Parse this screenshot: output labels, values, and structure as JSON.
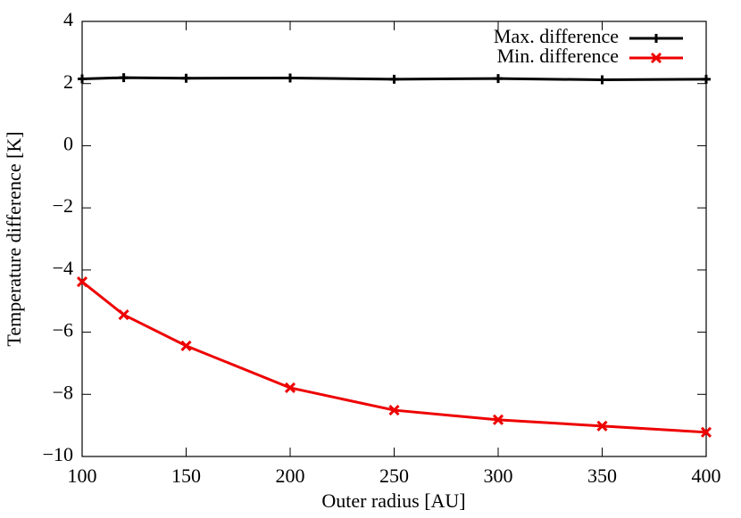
{
  "chart_data": {
    "type": "line",
    "x_label": "Outer radius [AU]",
    "y_label": "Temperature difference [K]",
    "x": [
      100,
      120,
      150,
      200,
      250,
      300,
      350,
      400
    ],
    "series": [
      {
        "name": "Max. difference",
        "color": "#000000",
        "marker": "plus",
        "values": [
          2.15,
          2.19,
          2.17,
          2.18,
          2.14,
          2.16,
          2.12,
          2.14
        ]
      },
      {
        "name": "Min. difference",
        "color": "#ee0000",
        "marker": "cross",
        "values": [
          -4.38,
          -5.44,
          -6.44,
          -7.79,
          -8.51,
          -8.82,
          -9.02,
          -9.22
        ]
      }
    ],
    "xlim": [
      100,
      400
    ],
    "xticks": [
      100,
      150,
      200,
      250,
      300,
      350,
      400
    ],
    "ylim": [
      -10,
      4
    ],
    "yticks": [
      {
        "value": -10,
        "label": "−10"
      },
      {
        "value": -8,
        "label": "−8"
      },
      {
        "value": -6,
        "label": "−6"
      },
      {
        "value": -4,
        "label": "−4"
      },
      {
        "value": -2,
        "label": "−2"
      },
      0,
      2,
      4
    ],
    "grid": false,
    "legend": "top right"
  }
}
